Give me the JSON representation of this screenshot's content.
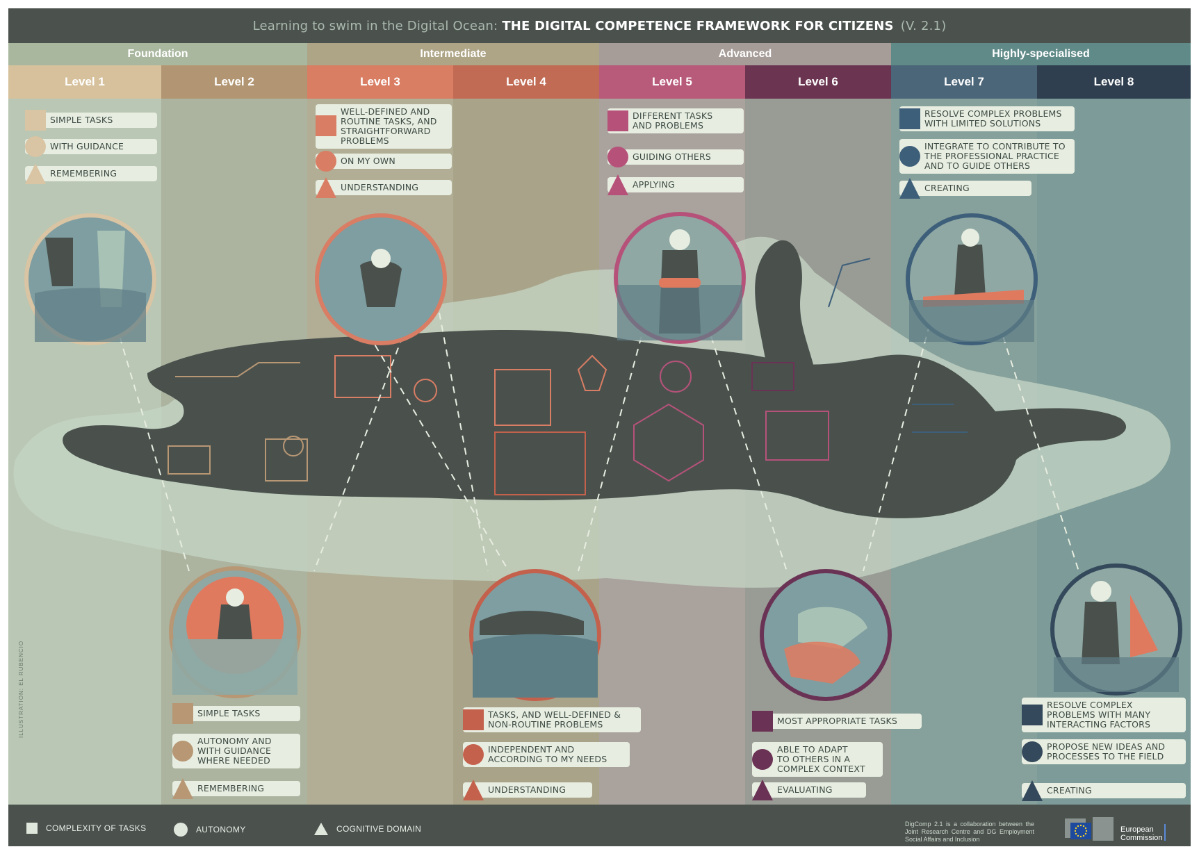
{
  "title": {
    "lead": "Learning to swim in the Digital Ocean:",
    "main": "THE DIGITAL COMPETENCE FRAMEWORK FOR CITIZENS",
    "version": "(V. 2.1)"
  },
  "bands": [
    {
      "label": "Foundation",
      "color": "#a9b79f"
    },
    {
      "label": "Intermediate",
      "color": "#aea587"
    },
    {
      "label": "Advanced",
      "color": "#a69c98"
    },
    {
      "label": "Highly-specialised",
      "color": "#5f8a88"
    }
  ],
  "levels": [
    {
      "label": "Level 1",
      "head": "#d6c19c",
      "col": "#b9c7b4",
      "accent": "#d9c4a3"
    },
    {
      "label": "Level 2",
      "head": "#b29673",
      "col": "#acb39f",
      "accent": "#b89774"
    },
    {
      "label": "Level 3",
      "head": "#d97d63",
      "col": "#b1ae95",
      "accent": "#d97d64"
    },
    {
      "label": "Level 4",
      "head": "#c16b55",
      "col": "#a9a489",
      "accent": "#c4614c"
    },
    {
      "label": "Level 5",
      "head": "#b85a7a",
      "col": "#a9a29d",
      "accent": "#b6527a"
    },
    {
      "label": "Level 6",
      "head": "#6b3551",
      "col": "#999b95",
      "accent": "#6a3355"
    },
    {
      "label": "Level 7",
      "head": "#4b6679",
      "col": "#86a09b",
      "accent": "#3e5f7a"
    },
    {
      "label": "Level 8",
      "head": "#2f3f4f",
      "col": "#7d9b98",
      "accent": "#344a5c"
    }
  ],
  "level_text": {
    "l1": [
      "SIMPLE TASKS",
      "WITH GUIDANCE",
      "REMEMBERING"
    ],
    "l2": [
      "SIMPLE TASKS",
      "AUTONOMY AND\nWITH GUIDANCE\nWHERE NEEDED",
      "REMEMBERING"
    ],
    "l3": [
      "WELL-DEFINED AND\nROUTINE TASKS, AND\nSTRAIGHTFORWARD\nPROBLEMS",
      "ON MY OWN",
      "UNDERSTANDING"
    ],
    "l4": [
      "TASKS, AND WELL-DEFINED &\nNON-ROUTINE PROBLEMS",
      "INDEPENDENT AND\nACCORDING TO MY NEEDS",
      "UNDERSTANDING"
    ],
    "l5": [
      "DIFFERENT TASKS\nAND PROBLEMS",
      "GUIDING OTHERS",
      "APPLYING"
    ],
    "l6": [
      "MOST APPROPRIATE TASKS",
      "ABLE TO ADAPT\nTO OTHERS IN A\nCOMPLEX CONTEXT",
      "EVALUATING"
    ],
    "l7": [
      "RESOLVE COMPLEX PROBLEMS\nWITH LIMITED SOLUTIONS",
      "INTEGRATE TO CONTRIBUTE TO\nTHE PROFESSIONAL PRACTICE\nAND TO GUIDE OTHERS",
      "CREATING"
    ],
    "l8": [
      "RESOLVE COMPLEX\nPROBLEMS WITH MANY\nINTERACTING FACTORS",
      "PROPOSE NEW IDEAS AND\nPROCESSES TO THE FIELD",
      "CREATING"
    ]
  },
  "legend": {
    "tasks": "COMPLEXITY OF TASKS",
    "autonomy": "AUTONOMY",
    "cognitive": "COGNITIVE DOMAIN"
  },
  "credit": "DigComp 2.1 is a collaboration between the Joint Research Centre and DG Employment Social Affairs and Inclusion",
  "side_credit": "ILLUSTRATION: EL RUBENCIO",
  "ec_name_line1": "European",
  "ec_name_line2": "Commission",
  "colors": {
    "dark": "#4b524e",
    "chip": "#e7ede0",
    "swimmer": "#4a514d",
    "water": "#c6d6c6"
  }
}
